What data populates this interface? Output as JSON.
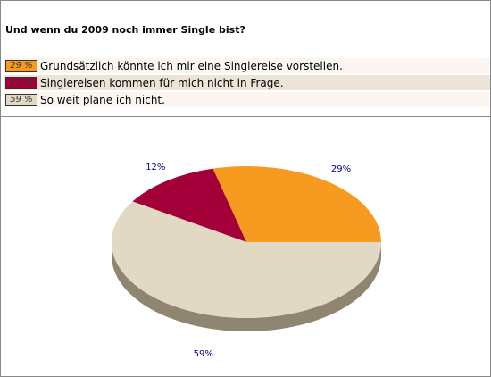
{
  "question": "Und wenn du 2009 noch immer Single bist?",
  "legend": [
    {
      "pct": "29 %",
      "label": "Grundsätzlich könnte ich mir eine Singlereise vorstellen.",
      "color": "#f79a20",
      "row_bg": "#fbf7f0"
    },
    {
      "pct": "12 %",
      "label": "Singlereisen kommen für mich nicht in Frage.",
      "color": "#a3003a",
      "row_bg": "#ece4d6"
    },
    {
      "pct": "59 %",
      "label": "So weit plane ich nicht.",
      "color": "#e2d9c5",
      "row_bg": "#fbf7f0"
    }
  ],
  "chart_data": {
    "type": "pie",
    "slices": [
      {
        "label": "29%",
        "value": 29,
        "color": "#f79a20",
        "side": "#b06d15"
      },
      {
        "label": "12%",
        "value": 12,
        "color": "#a3003a",
        "side": "#6e0027"
      },
      {
        "label": "59%",
        "value": 59,
        "color": "#e2d9c5",
        "side": "#8f8570"
      }
    ],
    "start_angle_deg": 0,
    "direction": "counterclockwise",
    "three_d": true
  }
}
